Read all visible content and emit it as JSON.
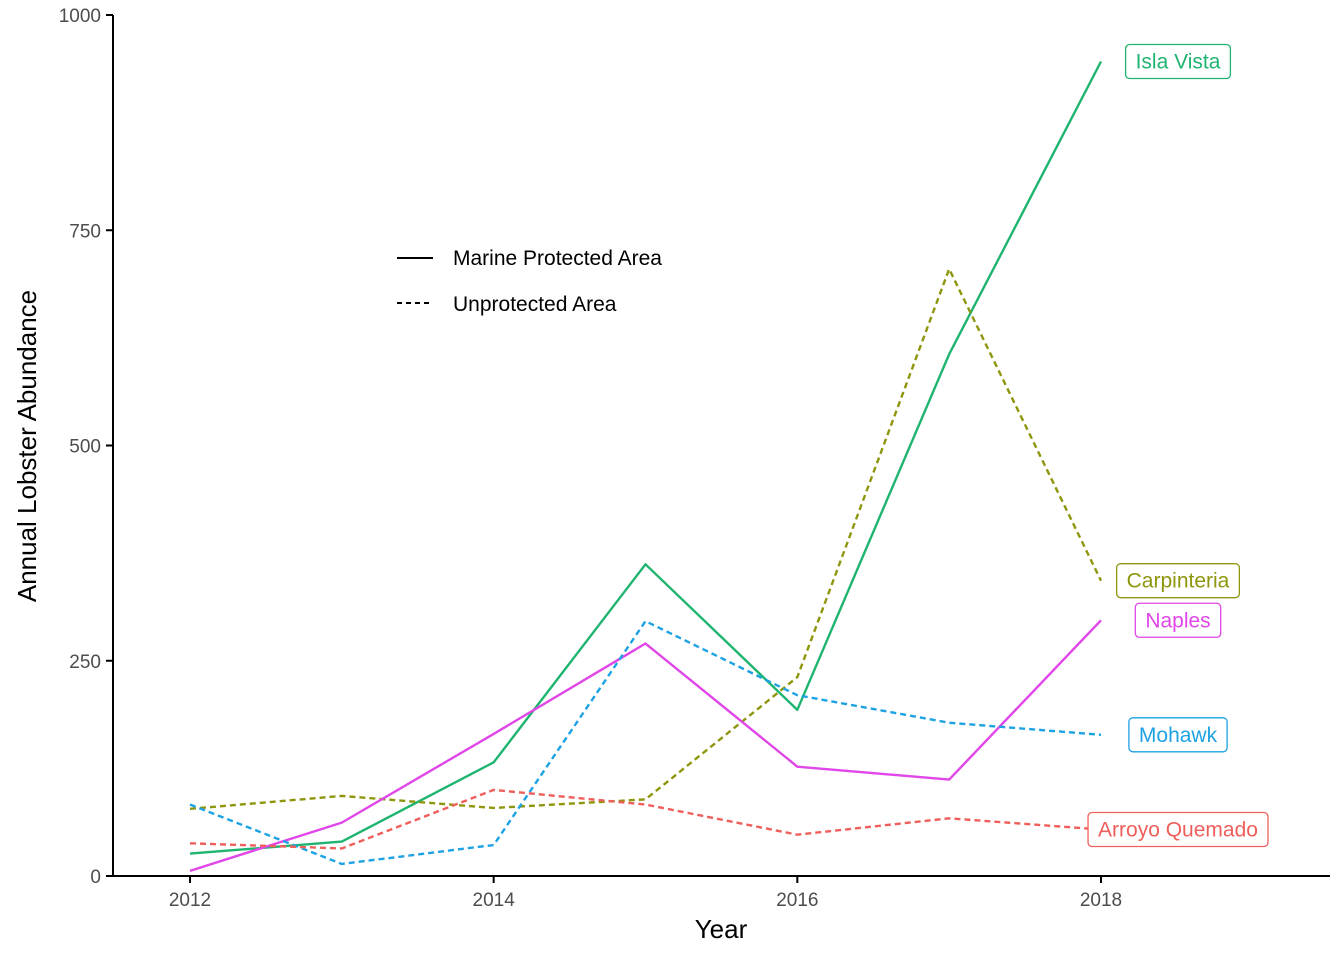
{
  "chart_data": {
    "type": "line",
    "title": "",
    "xlabel": "Year",
    "ylabel": "Annual Lobster Abundance",
    "xlim": [
      2011.5,
      2019.5
    ],
    "ylim": [
      0,
      1000
    ],
    "x_ticks": [
      "2012",
      "2014",
      "2016",
      "2018"
    ],
    "y_ticks": [
      "0",
      "250",
      "500",
      "750",
      "1000"
    ],
    "grid": false,
    "legend": {
      "placement": "top-center",
      "items": [
        {
          "label": "Marine Protected Area",
          "linetype": "solid"
        },
        {
          "label": "Unprotected Area",
          "linetype": "dashed"
        }
      ]
    },
    "x": [
      2012,
      2013,
      2014,
      2015,
      2016,
      2017,
      2018
    ],
    "series": [
      {
        "name": "Isla Vista",
        "color": "#1fb46f",
        "linetype": "solid",
        "values": [
          26,
          40,
          132,
          362,
          193,
          606,
          946
        ]
      },
      {
        "name": "Carpinteria",
        "color": "#8e960d",
        "linetype": "dashed",
        "values": [
          78,
          93,
          79,
          89,
          231,
          705,
          343
        ]
      },
      {
        "name": "Naples",
        "color": "#e046e8",
        "linetype": "solid",
        "values": [
          6,
          62,
          165,
          270,
          127,
          112,
          297
        ]
      },
      {
        "name": "Mohawk",
        "color": "#1da2e3",
        "linetype": "dashed",
        "values": [
          83,
          14,
          36,
          296,
          210,
          178,
          164
        ]
      },
      {
        "name": "Arroyo Quemado",
        "color": "#ee5f5b",
        "linetype": "dashed",
        "values": [
          38,
          32,
          100,
          83,
          48,
          67,
          54
        ]
      }
    ]
  }
}
